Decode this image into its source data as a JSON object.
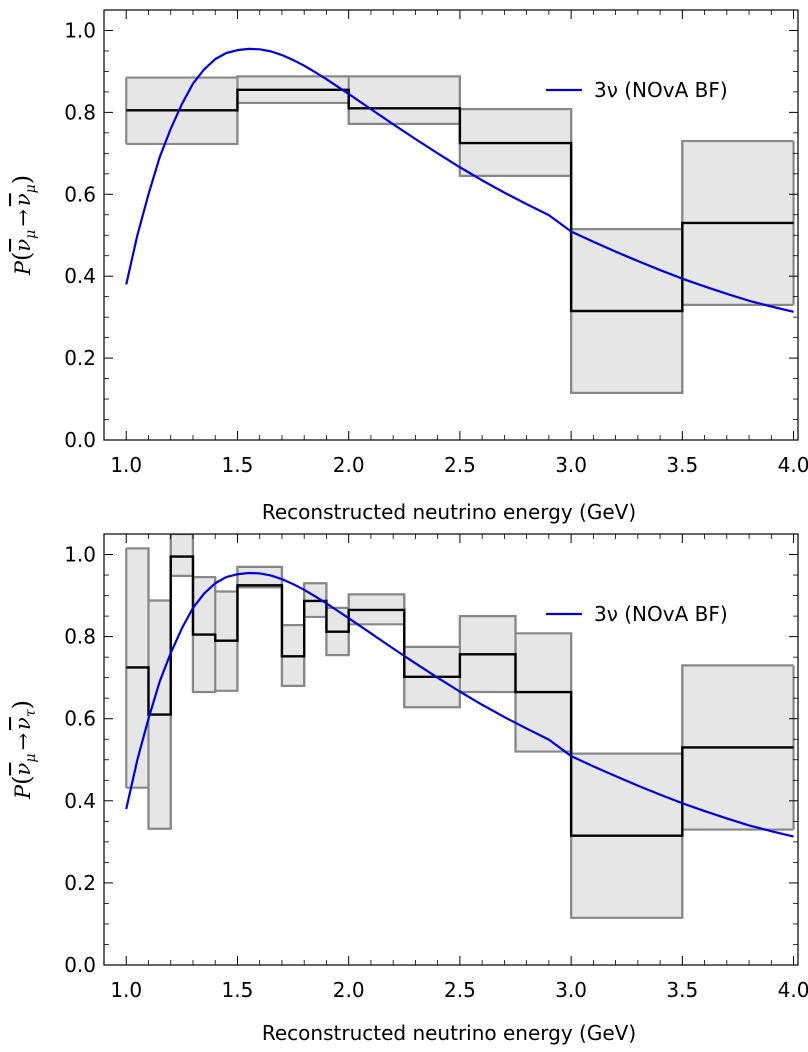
{
  "chart_data": [
    {
      "type": "line",
      "xlabel": "Reconstructed neutrino energy (GeV)",
      "ylabel": {
        "prefix": "P",
        "open": "(",
        "from": "ν",
        "from_sub": "μ",
        "arrow": "→",
        "to": "ν",
        "to_sub": "μ",
        "close": ")"
      },
      "xlim": [
        0.9,
        4.02
      ],
      "ylim": [
        0,
        1.05
      ],
      "xticks": [
        1.0,
        1.5,
        2.0,
        2.5,
        3.0,
        3.5,
        4.0
      ],
      "xtick_labels": [
        "1.0",
        "1.5",
        "2.0",
        "2.5",
        "3.0",
        "3.5",
        "4.0"
      ],
      "yticks": [
        0.0,
        0.2,
        0.4,
        0.6,
        0.8,
        1.0
      ],
      "ytick_labels": [
        "0.0",
        "0.2",
        "0.4",
        "0.6",
        "0.8",
        "1.0"
      ],
      "legend_position": "top-right",
      "series": [
        {
          "name": "3ν (NOvA BF)",
          "kind": "curve",
          "color": "#0000dd",
          "x": [
            1.0,
            1.05,
            1.1,
            1.15,
            1.2,
            1.25,
            1.3,
            1.35,
            1.4,
            1.45,
            1.5,
            1.55,
            1.6,
            1.65,
            1.7,
            1.75,
            1.8,
            1.85,
            1.9,
            1.95,
            2.0,
            2.1,
            2.2,
            2.3,
            2.4,
            2.5,
            2.6,
            2.7,
            2.8,
            2.9,
            3.0,
            3.1,
            3.2,
            3.3,
            3.4,
            3.5,
            3.6,
            3.7,
            3.8,
            3.9,
            4.0
          ],
          "y": [
            0.38,
            0.5,
            0.6,
            0.69,
            0.76,
            0.82,
            0.87,
            0.905,
            0.93,
            0.945,
            0.952,
            0.955,
            0.954,
            0.949,
            0.94,
            0.928,
            0.914,
            0.898,
            0.881,
            0.863,
            0.845,
            0.808,
            0.771,
            0.735,
            0.7,
            0.666,
            0.634,
            0.604,
            0.576,
            0.549,
            0.509,
            0.484,
            0.46,
            0.437,
            0.415,
            0.394,
            0.375,
            0.357,
            0.34,
            0.326,
            0.313
          ]
        }
      ],
      "bins": {
        "edges": [
          1.0,
          1.5,
          2.0,
          2.5,
          3.0,
          3.5,
          4.0
        ],
        "central": [
          0.805,
          0.855,
          0.81,
          0.725,
          0.315,
          0.53
        ],
        "lower": [
          0.723,
          0.823,
          0.772,
          0.645,
          0.115,
          0.33
        ],
        "upper": [
          0.885,
          0.888,
          0.888,
          0.808,
          0.515,
          0.73
        ],
        "central_color": "#000000",
        "band_color": "#888888",
        "band_fill": "#e6e6e6"
      }
    },
    {
      "type": "line",
      "xlabel": "Reconstructed neutrino energy (GeV)",
      "ylabel": {
        "prefix": "P",
        "open": "(",
        "from": "ν",
        "from_sub": "μ",
        "arrow": "→",
        "to": "ν",
        "to_sub": "τ",
        "close": ")"
      },
      "xlim": [
        0.9,
        4.02
      ],
      "ylim": [
        0,
        1.05
      ],
      "xticks": [
        1.0,
        1.5,
        2.0,
        2.5,
        3.0,
        3.5,
        4.0
      ],
      "xtick_labels": [
        "1.0",
        "1.5",
        "2.0",
        "2.5",
        "3.0",
        "3.5",
        "4.0"
      ],
      "yticks": [
        0.0,
        0.2,
        0.4,
        0.6,
        0.8,
        1.0
      ],
      "ytick_labels": [
        "0.0",
        "0.2",
        "0.4",
        "0.6",
        "0.8",
        "1.0"
      ],
      "legend_position": "top-right",
      "series": [
        {
          "name": "3ν (NOvA BF)",
          "kind": "curve",
          "color": "#0000dd",
          "x": [
            1.0,
            1.05,
            1.1,
            1.15,
            1.2,
            1.25,
            1.3,
            1.35,
            1.4,
            1.45,
            1.5,
            1.55,
            1.6,
            1.65,
            1.7,
            1.75,
            1.8,
            1.85,
            1.9,
            1.95,
            2.0,
            2.1,
            2.2,
            2.3,
            2.4,
            2.5,
            2.6,
            2.7,
            2.8,
            2.9,
            3.0,
            3.1,
            3.2,
            3.3,
            3.4,
            3.5,
            3.6,
            3.7,
            3.8,
            3.9,
            4.0
          ],
          "y": [
            0.38,
            0.5,
            0.6,
            0.69,
            0.76,
            0.82,
            0.87,
            0.905,
            0.93,
            0.945,
            0.952,
            0.955,
            0.954,
            0.949,
            0.94,
            0.928,
            0.914,
            0.898,
            0.881,
            0.863,
            0.845,
            0.808,
            0.771,
            0.735,
            0.7,
            0.666,
            0.634,
            0.604,
            0.576,
            0.549,
            0.509,
            0.484,
            0.46,
            0.437,
            0.415,
            0.394,
            0.375,
            0.357,
            0.34,
            0.326,
            0.313
          ]
        }
      ],
      "bins": {
        "edges": [
          1.0,
          1.1,
          1.2,
          1.3,
          1.4,
          1.5,
          1.7,
          1.8,
          1.9,
          2.0,
          2.25,
          2.5,
          2.75,
          3.0,
          3.5,
          4.0
        ],
        "central": [
          0.725,
          0.61,
          0.995,
          0.805,
          0.79,
          0.925,
          0.752,
          0.887,
          0.812,
          0.865,
          0.702,
          0.757,
          0.665,
          0.315,
          0.53
        ],
        "lower": [
          0.432,
          0.332,
          0.948,
          0.665,
          0.668,
          0.92,
          0.68,
          0.848,
          0.755,
          0.83,
          0.628,
          0.665,
          0.52,
          0.115,
          0.33
        ],
        "upper": [
          1.015,
          0.888,
          1.05,
          0.945,
          0.91,
          0.97,
          0.828,
          0.93,
          0.87,
          0.903,
          0.775,
          0.85,
          0.808,
          0.515,
          0.73
        ],
        "central_color": "#000000",
        "band_color": "#888888",
        "band_fill": "#e6e6e6"
      }
    }
  ]
}
